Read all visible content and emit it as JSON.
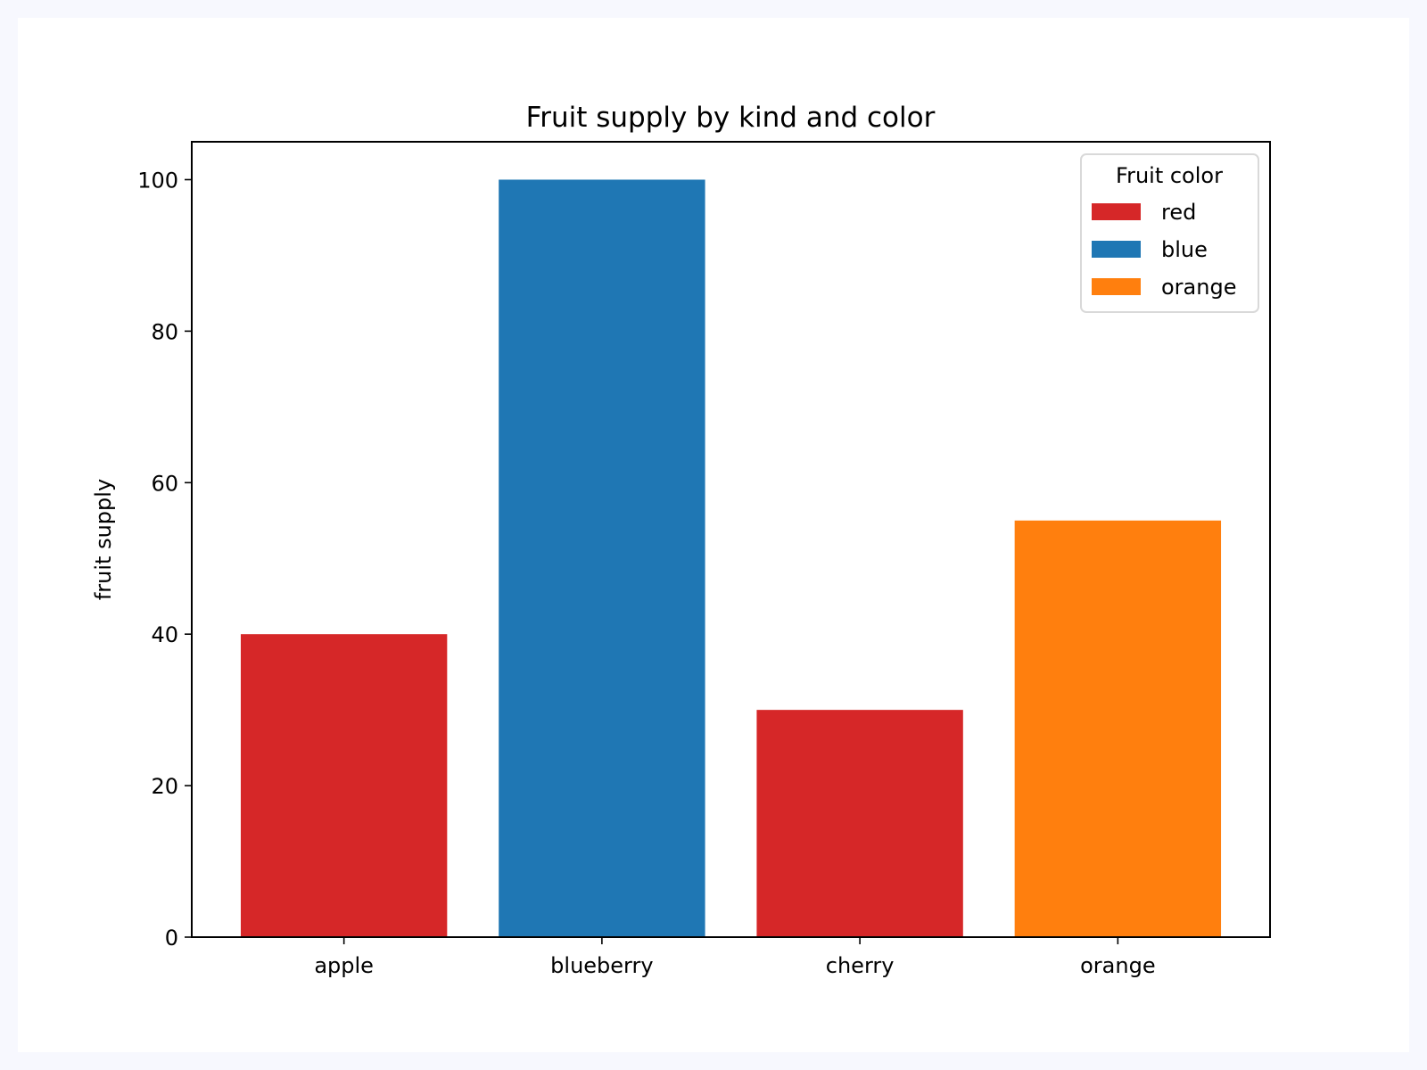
{
  "chart_data": {
    "type": "bar",
    "title": "Fruit supply by kind and color",
    "xlabel": "",
    "ylabel": "fruit supply",
    "categories": [
      "apple",
      "blueberry",
      "cherry",
      "orange"
    ],
    "values": [
      40,
      100,
      30,
      55
    ],
    "bar_labels": [
      "red",
      "blue",
      "red",
      "orange"
    ],
    "bar_colors": [
      "#d62728",
      "#1f77b4",
      "#d62728",
      "#ff7f0e"
    ],
    "ylim": [
      0,
      105
    ],
    "yticks": [
      0,
      20,
      40,
      60,
      80,
      100
    ],
    "grid": false,
    "legend": {
      "title": "Fruit color",
      "placement": "upper-right",
      "entries": [
        {
          "label": "red",
          "color": "#d62728"
        },
        {
          "label": "blue",
          "color": "#1f77b4"
        },
        {
          "label": "orange",
          "color": "#ff7f0e"
        }
      ]
    }
  }
}
